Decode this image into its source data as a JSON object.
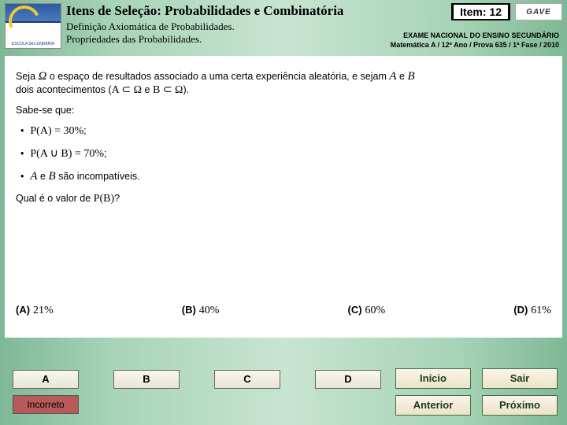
{
  "header": {
    "title": "Itens de Seleção: Probabilidades e Combinatória",
    "subtitle_l1": "Definição Axiomática de Probabilidades.",
    "subtitle_l2": "Propriedades das Probabilidades.",
    "item_label": "Item: 12",
    "gave": "GAVE",
    "exam_l1": "EXAME NACIONAL DO ENSINO SECUNDÁRIO",
    "exam_l2": "Matemática A / 12º Ano / Prova 635 / 1ª Fase / 2010"
  },
  "question": {
    "intro_pre": "Seja ",
    "intro_mid": " o espaço de resultados associado a uma certa experiência aleatória, e sejam ",
    "intro_and": " e ",
    "intro_post": " dois acontecimentos (",
    "intro_sub1": "A ⊂ Ω",
    "intro_e": " e ",
    "intro_sub2": "B ⊂ Ω",
    "intro_close": ").",
    "sabe": "Sabe-se que:",
    "b1_expr": "P(A) = 30%",
    "b1_tail": ";",
    "b2_expr": "P(A ∪ B) = 70%",
    "b2_tail": ";",
    "b3_pre": "",
    "b3_A": "A",
    "b3_mid": " e ",
    "b3_B": "B",
    "b3_post": " são incompatíveis.",
    "qual_pre": "Qual é o valor de ",
    "qual_expr": "P(B)",
    "qual_post": "?",
    "opts": {
      "A": {
        "k": "(A)",
        "v": "21%"
      },
      "B": {
        "k": "(B)",
        "v": "40%"
      },
      "C": {
        "k": "(C)",
        "v": "60%"
      },
      "D": {
        "k": "(D)",
        "v": "61%"
      }
    }
  },
  "answers": {
    "A": "A",
    "B": "B",
    "C": "C",
    "D": "D"
  },
  "feedback": "Incorreto",
  "nav": {
    "inicio": "Início",
    "sair": "Sair",
    "anterior": "Anterior",
    "proximo": "Próximo"
  },
  "colors": {
    "bg_grad_mid": "#c8e4d2",
    "feedback_bg": "#b85a5a"
  }
}
